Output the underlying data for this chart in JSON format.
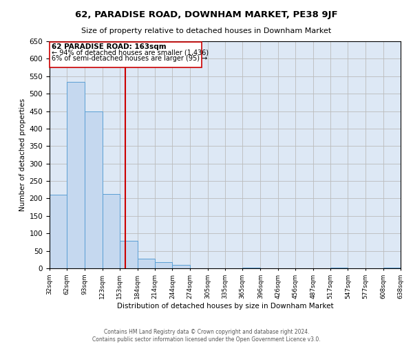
{
  "title": "62, PARADISE ROAD, DOWNHAM MARKET, PE38 9JF",
  "subtitle": "Size of property relative to detached houses in Downham Market",
  "xlabel": "Distribution of detached houses by size in Downham Market",
  "ylabel": "Number of detached properties",
  "footer_line1": "Contains HM Land Registry data © Crown copyright and database right 2024.",
  "footer_line2": "Contains public sector information licensed under the Open Government Licence v3.0.",
  "bin_edges": [
    32,
    62,
    93,
    123,
    153,
    184,
    214,
    244,
    274,
    305,
    335,
    365,
    396,
    426,
    456,
    487,
    517,
    547,
    577,
    608,
    638
  ],
  "bin_labels": [
    "32sqm",
    "62sqm",
    "93sqm",
    "123sqm",
    "153sqm",
    "184sqm",
    "214sqm",
    "244sqm",
    "274sqm",
    "305sqm",
    "335sqm",
    "365sqm",
    "396sqm",
    "426sqm",
    "456sqm",
    "487sqm",
    "517sqm",
    "547sqm",
    "577sqm",
    "608sqm",
    "638sqm"
  ],
  "bar_heights": [
    210,
    533,
    450,
    213,
    78,
    28,
    18,
    10,
    0,
    0,
    0,
    2,
    0,
    0,
    0,
    0,
    1,
    0,
    0,
    1
  ],
  "bar_color": "#c5d8ef",
  "bar_edge_color": "#5a9fd4",
  "vline_x": 163,
  "vline_color": "#cc0000",
  "annotation_title": "62 PARADISE ROAD: 163sqm",
  "annotation_line1": "← 94% of detached houses are smaller (1,436)",
  "annotation_line2": "6% of semi-detached houses are larger (95) →",
  "annotation_box_edge": "#cc0000",
  "ylim": [
    0,
    650
  ],
  "yticks": [
    0,
    50,
    100,
    150,
    200,
    250,
    300,
    350,
    400,
    450,
    500,
    550,
    600,
    650
  ],
  "ax_facecolor": "#dde8f5",
  "background_color": "#ffffff",
  "grid_color": "#bbbbbb"
}
